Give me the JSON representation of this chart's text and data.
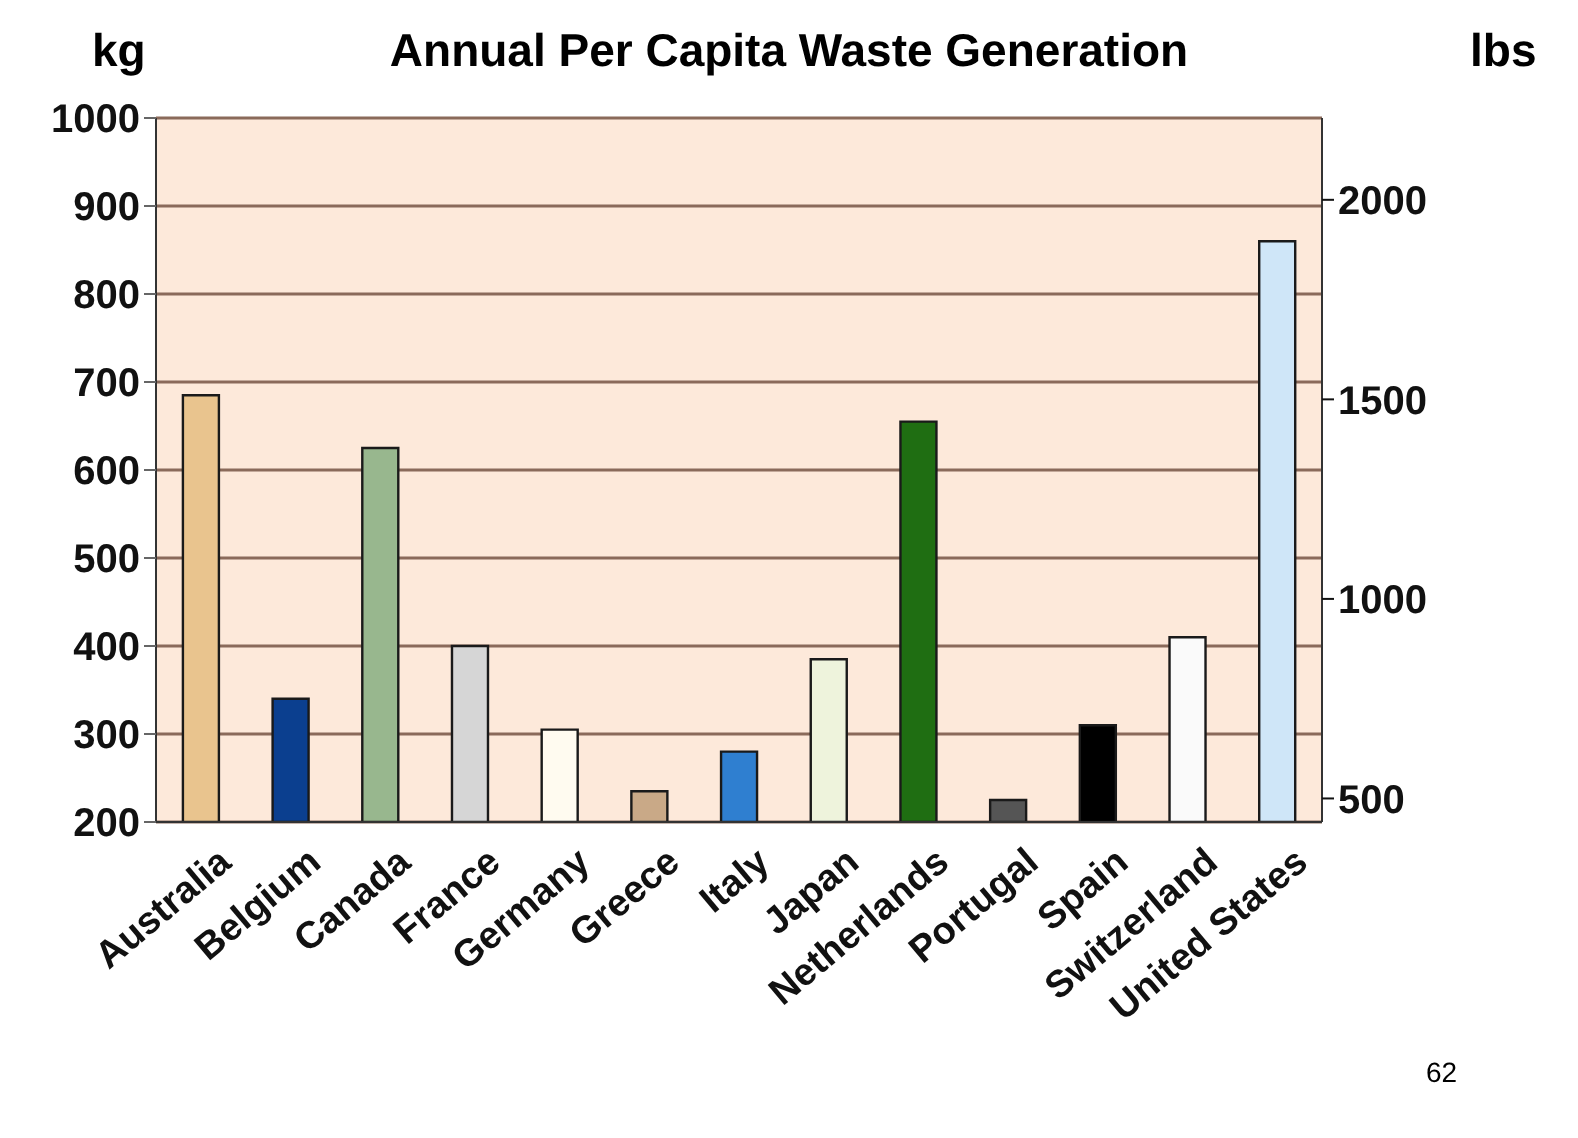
{
  "chart_data": {
    "type": "bar",
    "title": "Annual Per Capita Waste Generation",
    "ylabel": "kg",
    "y2label": "lbs",
    "categories": [
      "Australia",
      "Belgium",
      "Canada",
      "France",
      "Germany",
      "Greece",
      "Italy",
      "Japan",
      "Netherlands",
      "Portugal",
      "Spain",
      "Switzerland",
      "United States"
    ],
    "values": [
      685,
      340,
      625,
      400,
      305,
      235,
      280,
      385,
      655,
      225,
      310,
      410,
      860
    ],
    "colors": [
      "#e9c48e",
      "#0b3f8f",
      "#98b78e",
      "#d6d6d6",
      "#fffbf0",
      "#c9a987",
      "#2f7fd0",
      "#eef3dc",
      "#1f6e12",
      "#555555",
      "#000000",
      "#fafafa",
      "#cfe6f8"
    ],
    "ylim": [
      200,
      1000
    ],
    "yticks": [
      200,
      300,
      400,
      500,
      600,
      700,
      800,
      900,
      1000
    ],
    "y2lim": [
      441,
      2205
    ],
    "y2ticks": [
      500,
      1000,
      1500,
      2000
    ],
    "grid": "y",
    "annotations": [
      "62"
    ]
  }
}
